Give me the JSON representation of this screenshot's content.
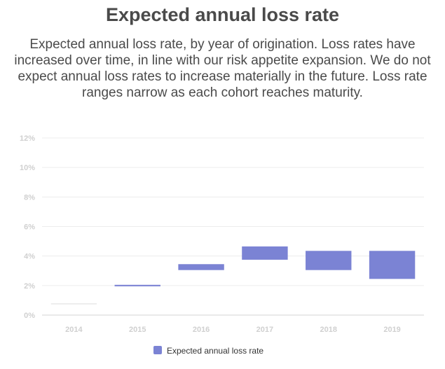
{
  "title": "Expected annual loss rate",
  "subtitle": "Expected annual loss rate, by year of origination. Loss rates have increased over time, in line with our risk appetite expansion. We do not expect annual loss rates to increase materially in the future. Loss rate ranges narrow as each cohort reaches maturity.",
  "chart_data": {
    "type": "bar",
    "subtype": "floating-range",
    "categories": [
      "2014",
      "2015",
      "2016",
      "2017",
      "2018",
      "2019"
    ],
    "series": [
      {
        "name": "Expected annual loss rate",
        "color": "#7b83d4",
        "ranges": [
          [
            0.75,
            0.75
          ],
          [
            1.95,
            2.05
          ],
          [
            3.05,
            3.45
          ],
          [
            3.75,
            4.65
          ],
          [
            3.05,
            4.35
          ],
          [
            2.45,
            4.35
          ]
        ]
      }
    ],
    "y_ticks": [
      0,
      2,
      4,
      6,
      8,
      10,
      12
    ],
    "y_tick_labels": [
      "0%",
      "2%",
      "4%",
      "6%",
      "8%",
      "10%",
      "12%"
    ],
    "ylim": [
      0,
      12
    ],
    "y_unit": "%",
    "grid": true,
    "legend_position": "bottom-center",
    "range_low_color": "#e8e8e8"
  }
}
